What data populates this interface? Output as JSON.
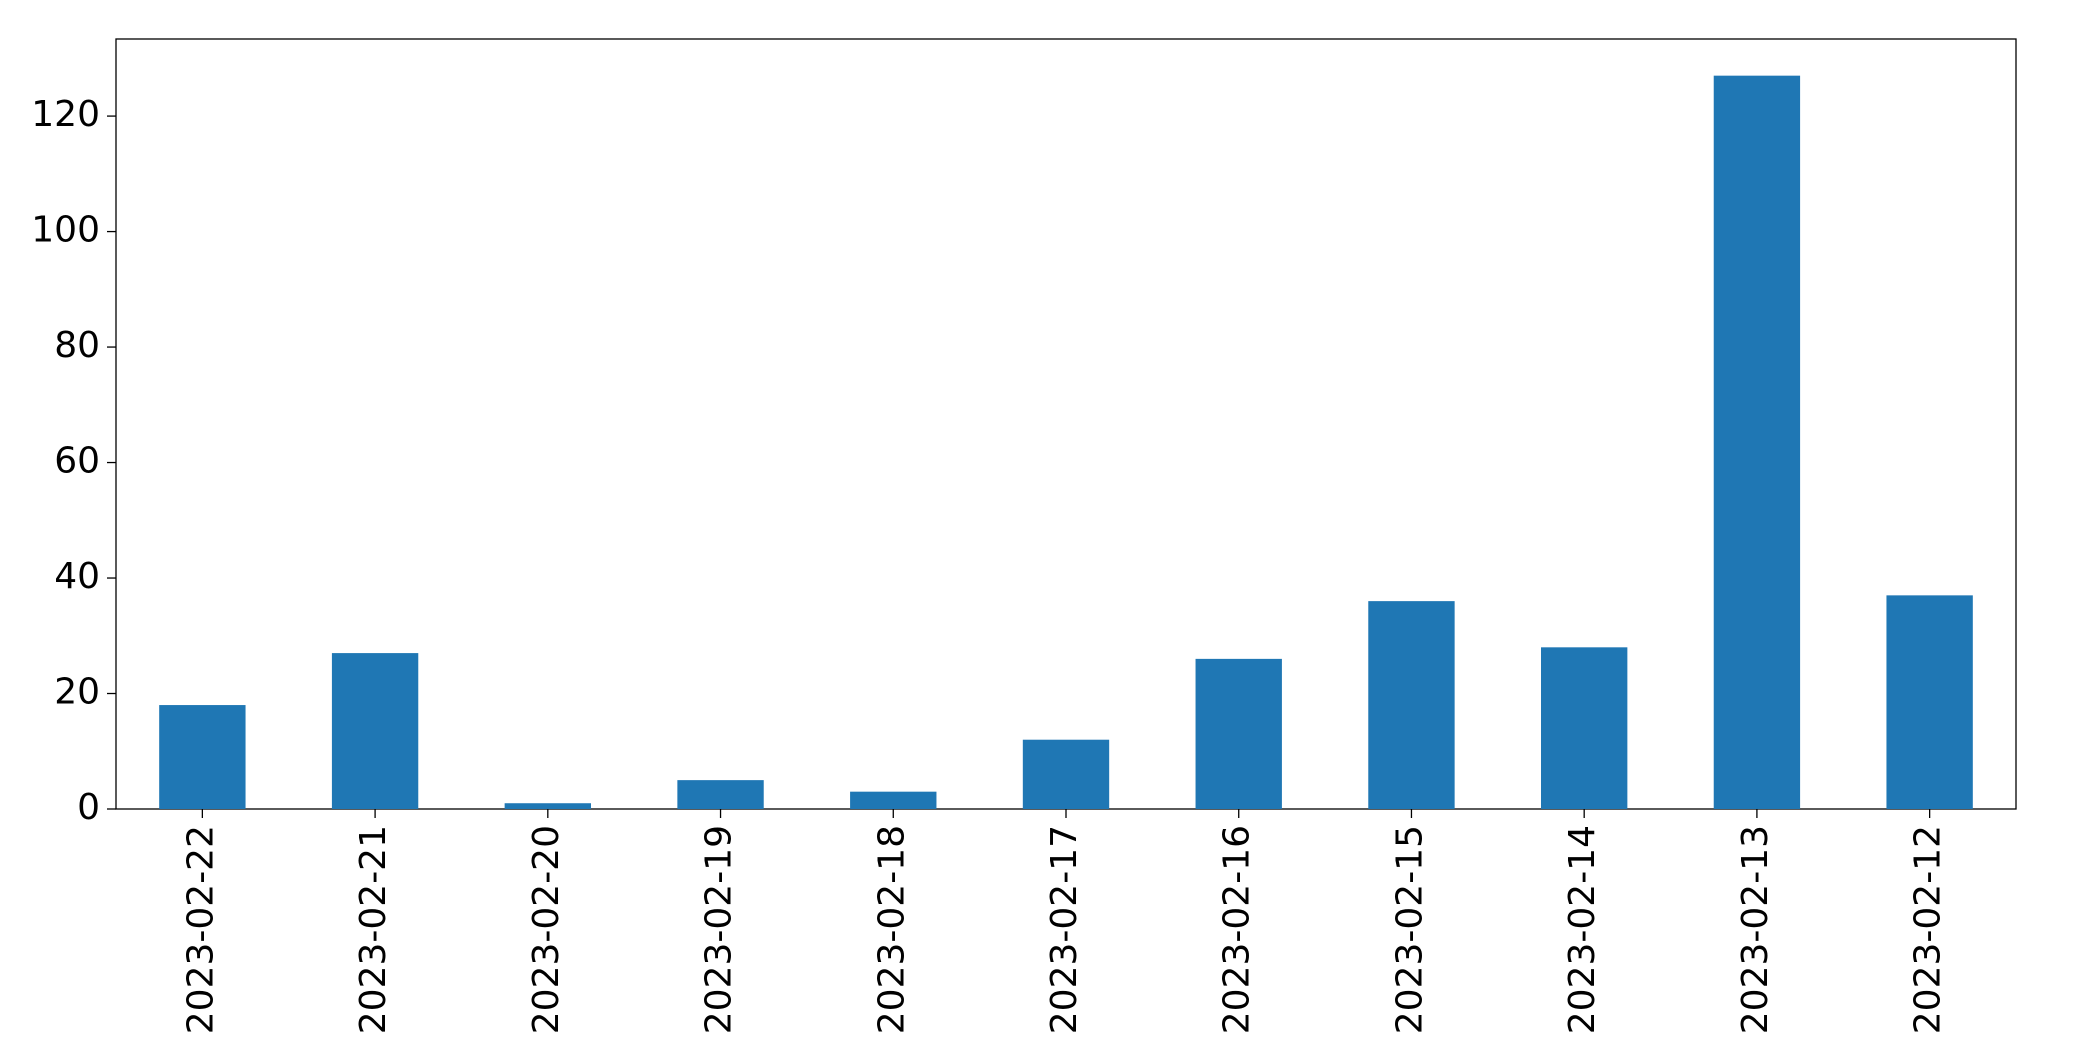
{
  "chart_data": {
    "type": "bar",
    "categories": [
      "2023-02-22",
      "2023-02-21",
      "2023-02-20",
      "2023-02-19",
      "2023-02-18",
      "2023-02-17",
      "2023-02-16",
      "2023-02-15",
      "2023-02-14",
      "2023-02-13",
      "2023-02-12"
    ],
    "values": [
      18,
      27,
      1,
      5,
      3,
      12,
      26,
      36,
      28,
      127,
      37
    ],
    "color": "#1f77b4",
    "ylim": [
      0,
      133.35
    ],
    "yticks": [
      0,
      20,
      40,
      60,
      80,
      100,
      120
    ],
    "grid": false
  }
}
